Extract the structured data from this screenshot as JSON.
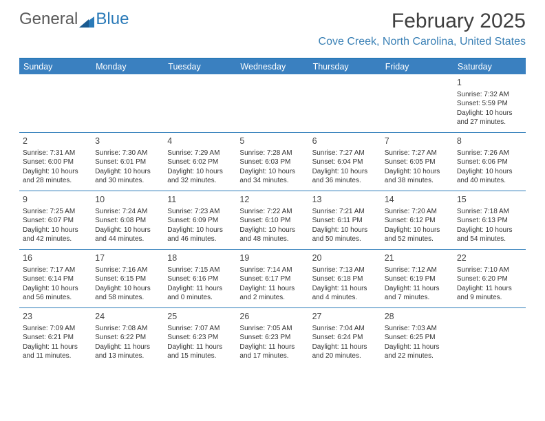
{
  "logo": {
    "text1": "General",
    "text2": "Blue"
  },
  "title": "February 2025",
  "location": "Cove Creek, North Carolina, United States",
  "colors": {
    "header_bg": "#3a80c0",
    "border": "#2a7ab8",
    "location_text": "#3a80b5",
    "title_text": "#404040",
    "body_text": "#333333"
  },
  "font": {
    "family": "Arial",
    "title_size": 30,
    "location_size": 16,
    "header_size": 12.5,
    "daynum_size": 12.5,
    "cell_size": 10
  },
  "day_headers": [
    "Sunday",
    "Monday",
    "Tuesday",
    "Wednesday",
    "Thursday",
    "Friday",
    "Saturday"
  ],
  "weeks": [
    [
      {
        "empty": true
      },
      {
        "empty": true
      },
      {
        "empty": true
      },
      {
        "empty": true
      },
      {
        "empty": true
      },
      {
        "empty": true
      },
      {
        "num": "1",
        "sunrise": "Sunrise: 7:32 AM",
        "sunset": "Sunset: 5:59 PM",
        "day1": "Daylight: 10 hours",
        "day2": "and 27 minutes."
      }
    ],
    [
      {
        "num": "2",
        "sunrise": "Sunrise: 7:31 AM",
        "sunset": "Sunset: 6:00 PM",
        "day1": "Daylight: 10 hours",
        "day2": "and 28 minutes."
      },
      {
        "num": "3",
        "sunrise": "Sunrise: 7:30 AM",
        "sunset": "Sunset: 6:01 PM",
        "day1": "Daylight: 10 hours",
        "day2": "and 30 minutes."
      },
      {
        "num": "4",
        "sunrise": "Sunrise: 7:29 AM",
        "sunset": "Sunset: 6:02 PM",
        "day1": "Daylight: 10 hours",
        "day2": "and 32 minutes."
      },
      {
        "num": "5",
        "sunrise": "Sunrise: 7:28 AM",
        "sunset": "Sunset: 6:03 PM",
        "day1": "Daylight: 10 hours",
        "day2": "and 34 minutes."
      },
      {
        "num": "6",
        "sunrise": "Sunrise: 7:27 AM",
        "sunset": "Sunset: 6:04 PM",
        "day1": "Daylight: 10 hours",
        "day2": "and 36 minutes."
      },
      {
        "num": "7",
        "sunrise": "Sunrise: 7:27 AM",
        "sunset": "Sunset: 6:05 PM",
        "day1": "Daylight: 10 hours",
        "day2": "and 38 minutes."
      },
      {
        "num": "8",
        "sunrise": "Sunrise: 7:26 AM",
        "sunset": "Sunset: 6:06 PM",
        "day1": "Daylight: 10 hours",
        "day2": "and 40 minutes."
      }
    ],
    [
      {
        "num": "9",
        "sunrise": "Sunrise: 7:25 AM",
        "sunset": "Sunset: 6:07 PM",
        "day1": "Daylight: 10 hours",
        "day2": "and 42 minutes."
      },
      {
        "num": "10",
        "sunrise": "Sunrise: 7:24 AM",
        "sunset": "Sunset: 6:08 PM",
        "day1": "Daylight: 10 hours",
        "day2": "and 44 minutes."
      },
      {
        "num": "11",
        "sunrise": "Sunrise: 7:23 AM",
        "sunset": "Sunset: 6:09 PM",
        "day1": "Daylight: 10 hours",
        "day2": "and 46 minutes."
      },
      {
        "num": "12",
        "sunrise": "Sunrise: 7:22 AM",
        "sunset": "Sunset: 6:10 PM",
        "day1": "Daylight: 10 hours",
        "day2": "and 48 minutes."
      },
      {
        "num": "13",
        "sunrise": "Sunrise: 7:21 AM",
        "sunset": "Sunset: 6:11 PM",
        "day1": "Daylight: 10 hours",
        "day2": "and 50 minutes."
      },
      {
        "num": "14",
        "sunrise": "Sunrise: 7:20 AM",
        "sunset": "Sunset: 6:12 PM",
        "day1": "Daylight: 10 hours",
        "day2": "and 52 minutes."
      },
      {
        "num": "15",
        "sunrise": "Sunrise: 7:18 AM",
        "sunset": "Sunset: 6:13 PM",
        "day1": "Daylight: 10 hours",
        "day2": "and 54 minutes."
      }
    ],
    [
      {
        "num": "16",
        "sunrise": "Sunrise: 7:17 AM",
        "sunset": "Sunset: 6:14 PM",
        "day1": "Daylight: 10 hours",
        "day2": "and 56 minutes."
      },
      {
        "num": "17",
        "sunrise": "Sunrise: 7:16 AM",
        "sunset": "Sunset: 6:15 PM",
        "day1": "Daylight: 10 hours",
        "day2": "and 58 minutes."
      },
      {
        "num": "18",
        "sunrise": "Sunrise: 7:15 AM",
        "sunset": "Sunset: 6:16 PM",
        "day1": "Daylight: 11 hours",
        "day2": "and 0 minutes."
      },
      {
        "num": "19",
        "sunrise": "Sunrise: 7:14 AM",
        "sunset": "Sunset: 6:17 PM",
        "day1": "Daylight: 11 hours",
        "day2": "and 2 minutes."
      },
      {
        "num": "20",
        "sunrise": "Sunrise: 7:13 AM",
        "sunset": "Sunset: 6:18 PM",
        "day1": "Daylight: 11 hours",
        "day2": "and 4 minutes."
      },
      {
        "num": "21",
        "sunrise": "Sunrise: 7:12 AM",
        "sunset": "Sunset: 6:19 PM",
        "day1": "Daylight: 11 hours",
        "day2": "and 7 minutes."
      },
      {
        "num": "22",
        "sunrise": "Sunrise: 7:10 AM",
        "sunset": "Sunset: 6:20 PM",
        "day1": "Daylight: 11 hours",
        "day2": "and 9 minutes."
      }
    ],
    [
      {
        "num": "23",
        "sunrise": "Sunrise: 7:09 AM",
        "sunset": "Sunset: 6:21 PM",
        "day1": "Daylight: 11 hours",
        "day2": "and 11 minutes."
      },
      {
        "num": "24",
        "sunrise": "Sunrise: 7:08 AM",
        "sunset": "Sunset: 6:22 PM",
        "day1": "Daylight: 11 hours",
        "day2": "and 13 minutes."
      },
      {
        "num": "25",
        "sunrise": "Sunrise: 7:07 AM",
        "sunset": "Sunset: 6:23 PM",
        "day1": "Daylight: 11 hours",
        "day2": "and 15 minutes."
      },
      {
        "num": "26",
        "sunrise": "Sunrise: 7:05 AM",
        "sunset": "Sunset: 6:23 PM",
        "day1": "Daylight: 11 hours",
        "day2": "and 17 minutes."
      },
      {
        "num": "27",
        "sunrise": "Sunrise: 7:04 AM",
        "sunset": "Sunset: 6:24 PM",
        "day1": "Daylight: 11 hours",
        "day2": "and 20 minutes."
      },
      {
        "num": "28",
        "sunrise": "Sunrise: 7:03 AM",
        "sunset": "Sunset: 6:25 PM",
        "day1": "Daylight: 11 hours",
        "day2": "and 22 minutes."
      },
      {
        "empty": true
      }
    ]
  ]
}
